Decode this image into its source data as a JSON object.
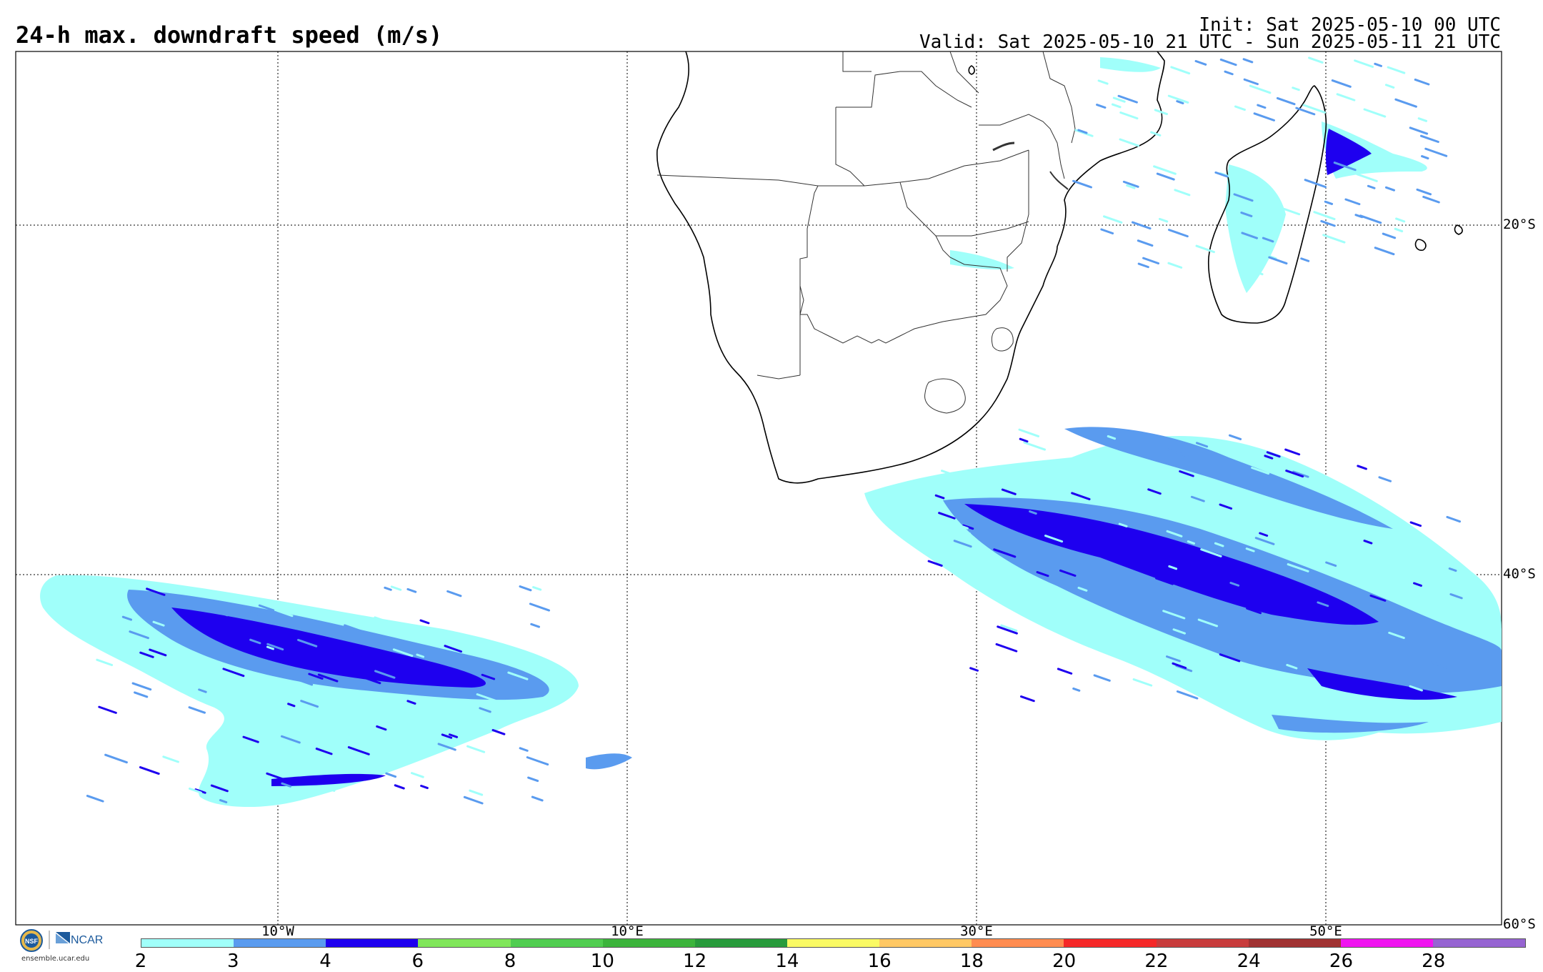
{
  "header": {
    "title": "24-h max. downdraft speed (m/s)",
    "init": "Init: Sat 2025-05-10 00 UTC",
    "valid": "Valid: Sat 2025-05-10 21 UTC - Sun 2025-05-11 21 UTC"
  },
  "map": {
    "lat_labels": [
      "20°S",
      "40°S",
      "60°S"
    ],
    "lon_labels": [
      "10°W",
      "10°E",
      "30°E",
      "50°E"
    ]
  },
  "colorbar": {
    "labels": [
      "2",
      "3",
      "4",
      "6",
      "8",
      "10",
      "12",
      "14",
      "16",
      "18",
      "20",
      "22",
      "24",
      "26",
      "28"
    ],
    "colors": [
      "#a0fffa",
      "#5a9bef",
      "#1e00ef",
      "#80e65a",
      "#50cd50",
      "#3cb43c",
      "#289b3c",
      "#fafa64",
      "#ffc864",
      "#ff8c50",
      "#f52828",
      "#c83c3c",
      "#a03232",
      "#f014f0",
      "#9664d2"
    ]
  },
  "logo": {
    "org1": "NSF",
    "org2": "NCAR",
    "url": "ensemble.ucar.edu"
  }
}
